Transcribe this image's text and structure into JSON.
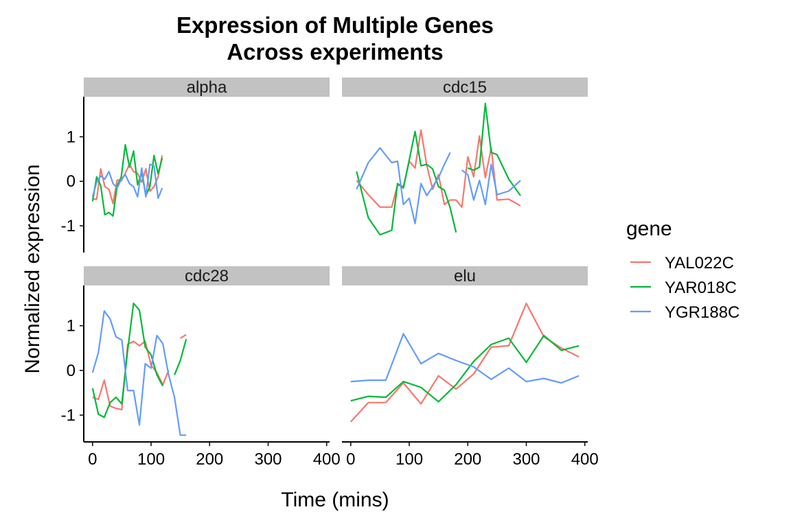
{
  "chart_data": {
    "type": "line",
    "title": "Expression of Multiple Genes",
    "subtitle": "Across experiments",
    "xlabel": "Time (mins)",
    "ylabel": "Normalized expression",
    "xlim": [
      -15,
      405
    ],
    "ylim": [
      -1.6,
      1.9
    ],
    "x_ticks": [
      0,
      100,
      200,
      300,
      400
    ],
    "y_ticks": [
      1,
      0,
      -1
    ],
    "y_tick_labels": [
      "1",
      "0",
      "-1"
    ],
    "legend": {
      "title": "gene",
      "position": "right"
    },
    "series_info": [
      {
        "name": "YAL022C",
        "color": "#F8766D"
      },
      {
        "name": "YAR018C",
        "color": "#00BA38"
      },
      {
        "name": "YGR188C",
        "color": "#619CFF"
      }
    ],
    "panels": [
      {
        "name": "alpha",
        "series": [
          {
            "name": "YAL022C",
            "segments": [
              {
                "x": [
                  0,
                  7,
                  14,
                  21,
                  28,
                  35,
                  42,
                  49,
                  56,
                  63,
                  70,
                  77,
                  84,
                  91,
                  98,
                  105,
                  112,
                  119
                ],
                "y": [
                  -0.4,
                  -0.4,
                  0.28,
                  -0.12,
                  -0.18,
                  -0.5,
                  0.03,
                  0.01,
                  0.18,
                  0.38,
                  0.22,
                  0.18,
                  -0.02,
                  0.28,
                  -0.22,
                  -0.12,
                  0.1,
                  0.58
                ]
              }
            ]
          },
          {
            "name": "YAR018C",
            "segments": [
              {
                "x": [
                  0,
                  7,
                  14,
                  21,
                  28,
                  35,
                  42,
                  49,
                  56,
                  63,
                  70,
                  77,
                  84,
                  91,
                  98,
                  105,
                  112,
                  119
                ],
                "y": [
                  -0.45,
                  0.1,
                  -0.1,
                  -0.75,
                  -0.7,
                  -0.78,
                  -0.1,
                  0.1,
                  0.82,
                  0.32,
                  0.68,
                  -0.08,
                  0.2,
                  -0.32,
                  -0.12,
                  0.58,
                  0.17,
                  0.52
                ]
              }
            ]
          },
          {
            "name": "YGR188C",
            "segments": [
              {
                "x": [
                  0,
                  7,
                  14,
                  21,
                  28,
                  35,
                  42,
                  49,
                  56,
                  63,
                  70,
                  77,
                  84,
                  91,
                  98,
                  105,
                  112,
                  119
                ],
                "y": [
                  -0.35,
                  -0.02,
                  0.12,
                  0.05,
                  0.22,
                  -0.05,
                  -0.15,
                  0.05,
                  0.15,
                  -0.05,
                  -0.12,
                  -0.35,
                  0.3,
                  -0.35,
                  0.38,
                  0.35,
                  -0.38,
                  -0.15
                ]
              }
            ]
          }
        ]
      },
      {
        "name": "cdc15",
        "series": [
          {
            "name": "YAL022C",
            "segments": [
              {
                "x": [
                  10,
                  30,
                  50,
                  70,
                  80,
                  90,
                  100,
                  110,
                  120,
                  130,
                  140,
                  150,
                  160,
                  170,
                  180,
                  190,
                  200,
                  210,
                  220,
                  230,
                  240,
                  250,
                  270,
                  290
                ],
                "y": [
                  0.02,
                  -0.3,
                  -0.58,
                  -0.58,
                  -0.08,
                  -0.12,
                  0.45,
                  0.3,
                  1.15,
                  0.35,
                  -0.18,
                  0.15,
                  -0.52,
                  -0.42,
                  -0.42,
                  -0.58,
                  0.55,
                  0.1,
                  1.02,
                  0.08,
                  0.75,
                  -0.42,
                  -0.4,
                  -0.55
                ]
              }
            ]
          },
          {
            "name": "YAR018C",
            "segments": [
              {
                "x": [
                  10,
                  30,
                  50,
                  70,
                  80,
                  90,
                  100,
                  110,
                  120,
                  130,
                  140,
                  150,
                  160,
                  170,
                  180
                ],
                "y": [
                  0.22,
                  -0.82,
                  -1.2,
                  -1.1,
                  -0.05,
                  -0.15,
                  0.48,
                  1.12,
                  0.35,
                  0.38,
                  0.28,
                  -0.12,
                  -0.2,
                  -0.6,
                  -1.15
                ]
              },
              {
                "x": [
                  200,
                  210,
                  220,
                  230,
                  240,
                  250,
                  270,
                  290
                ],
                "y": [
                  0.3,
                  0.25,
                  0.32,
                  1.75,
                  0.65,
                  0.6,
                  0.05,
                  -0.32
                ]
              }
            ]
          },
          {
            "name": "YGR188C",
            "segments": [
              {
                "x": [
                  10,
                  30,
                  50,
                  70,
                  80,
                  90,
                  100,
                  110,
                  120,
                  130,
                  140,
                  150,
                  160,
                  170
                ],
                "y": [
                  -0.18,
                  0.42,
                  0.75,
                  0.42,
                  0.45,
                  -0.52,
                  -0.38,
                  -0.95,
                  -0.05,
                  -0.32,
                  -0.12,
                  0.08,
                  0.38,
                  0.65
                ]
              },
              {
                "x": [
                  190,
                  200,
                  210,
                  220,
                  230,
                  240,
                  250,
                  270,
                  290
                ],
                "y": [
                  0.25,
                  0.15,
                  -0.42,
                  0.02,
                  -0.52,
                  0.38,
                  -0.3,
                  -0.22,
                  0.02
                ]
              }
            ]
          }
        ]
      },
      {
        "name": "cdc28",
        "series": [
          {
            "name": "YAL022C",
            "segments": [
              {
                "x": [
                  0,
                  10,
                  20,
                  30,
                  40,
                  50,
                  60,
                  70,
                  80,
                  90,
                  100,
                  110,
                  120,
                  130
                ],
                "y": [
                  -0.6,
                  -0.65,
                  -0.22,
                  -0.8,
                  -0.85,
                  -0.88,
                  0.58,
                  0.65,
                  0.55,
                  0.65,
                  0.12,
                  -0.05,
                  -0.32,
                  0.0
                ]
              },
              {
                "x": [
                  150,
                  160
                ],
                "y": [
                  0.72,
                  0.8
                ]
              }
            ]
          },
          {
            "name": "YAR018C",
            "segments": [
              {
                "x": [
                  0,
                  10,
                  20,
                  30,
                  40,
                  50,
                  60,
                  70,
                  80,
                  90,
                  100,
                  110,
                  120
                ],
                "y": [
                  -0.4,
                  -0.98,
                  -1.05,
                  -0.72,
                  -0.6,
                  -0.75,
                  0.45,
                  1.5,
                  1.35,
                  0.52,
                  0.35,
                  -0.1,
                  -0.35
                ]
              },
              {
                "x": [
                  140,
                  150,
                  160
                ],
                "y": [
                  -0.1,
                  0.22,
                  0.7
                ]
              }
            ]
          },
          {
            "name": "YGR188C",
            "segments": [
              {
                "x": [
                  0,
                  10,
                  20,
                  30,
                  40,
                  50,
                  60,
                  70,
                  80,
                  90,
                  100,
                  110,
                  120,
                  130,
                  140,
                  150,
                  160
                ],
                "y": [
                  -0.05,
                  0.4,
                  1.33,
                  1.15,
                  0.75,
                  0.68,
                  -0.45,
                  -0.45,
                  -1.22,
                  0.15,
                  0.05,
                  0.78,
                  0.6,
                  -0.1,
                  -0.6,
                  -1.45,
                  -1.45
                ]
              }
            ]
          }
        ]
      },
      {
        "name": "elu",
        "series": [
          {
            "name": "YAL022C",
            "segments": [
              {
                "x": [
                  0,
                  30,
                  60,
                  90,
                  120,
                  150,
                  180,
                  210,
                  240,
                  270,
                  300,
                  330,
                  360,
                  390
                ],
                "y": [
                  -1.15,
                  -0.72,
                  -0.72,
                  -0.28,
                  -0.75,
                  -0.12,
                  -0.42,
                  -0.08,
                  0.52,
                  0.55,
                  1.5,
                  0.75,
                  0.5,
                  0.3
                ]
              }
            ]
          },
          {
            "name": "YAR018C",
            "segments": [
              {
                "x": [
                  0,
                  30,
                  60,
                  90,
                  120,
                  150,
                  180,
                  210,
                  240,
                  270,
                  300,
                  330,
                  360,
                  390
                ],
                "y": [
                  -0.68,
                  -0.58,
                  -0.6,
                  -0.25,
                  -0.38,
                  -0.7,
                  -0.32,
                  0.2,
                  0.58,
                  0.72,
                  0.18,
                  0.78,
                  0.45,
                  0.55
                ]
              }
            ]
          },
          {
            "name": "YGR188C",
            "segments": [
              {
                "x": [
                  0,
                  30,
                  60,
                  90,
                  120,
                  150,
                  180,
                  210,
                  240,
                  270,
                  300,
                  330,
                  360,
                  390
                ],
                "y": [
                  -0.25,
                  -0.22,
                  -0.22,
                  0.82,
                  0.15,
                  0.38,
                  0.22,
                  0.08,
                  -0.2,
                  0.05,
                  -0.25,
                  -0.18,
                  -0.28,
                  -0.12
                ]
              }
            ]
          }
        ]
      }
    ]
  }
}
